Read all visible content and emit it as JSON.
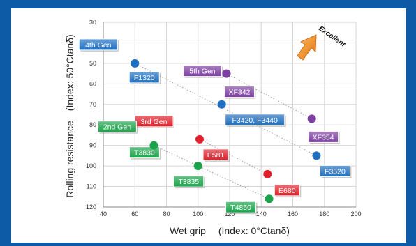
{
  "chart_data": {
    "type": "scatter",
    "xlabel": "Wet grip  (Index: 0°Ctanδ)",
    "ylabel": "Rolling resistance (Index: 50°Ctanδ)",
    "xlim": [
      40,
      200
    ],
    "ylim": [
      30,
      120
    ],
    "y_inverted": true,
    "xticks": [
      40,
      60,
      80,
      100,
      120,
      140,
      160,
      180,
      200
    ],
    "yticks": [
      30,
      40,
      50,
      60,
      70,
      80,
      90,
      100,
      110,
      120
    ],
    "grid": true,
    "excellent_label": "Excellent",
    "generations": [
      {
        "name": "5th Gen",
        "color": "#7b3fa0",
        "points": [
          {
            "label": "XF342",
            "x": 118,
            "y": 55
          },
          {
            "label": "XF354",
            "x": 172,
            "y": 77
          }
        ]
      },
      {
        "name": "4th Gen",
        "color": "#1e6fc0",
        "points": [
          {
            "label": "F1320",
            "x": 60,
            "y": 50
          },
          {
            "label": "F3420, F3440",
            "x": 115,
            "y": 70
          },
          {
            "label": "F3520",
            "x": 175,
            "y": 95
          }
        ]
      },
      {
        "name": "3rd Gen",
        "color": "#e0202a",
        "points": [
          {
            "label": "E581",
            "x": 101,
            "y": 87
          },
          {
            "label": "E680",
            "x": 144,
            "y": 104
          }
        ]
      },
      {
        "name": "2nd Gen",
        "color": "#1aa34a",
        "points": [
          {
            "label": "T3830",
            "x": 72,
            "y": 90
          },
          {
            "label": "T3835",
            "x": 100,
            "y": 100
          },
          {
            "label": "T4850",
            "x": 145,
            "y": 116
          }
        ]
      }
    ]
  }
}
